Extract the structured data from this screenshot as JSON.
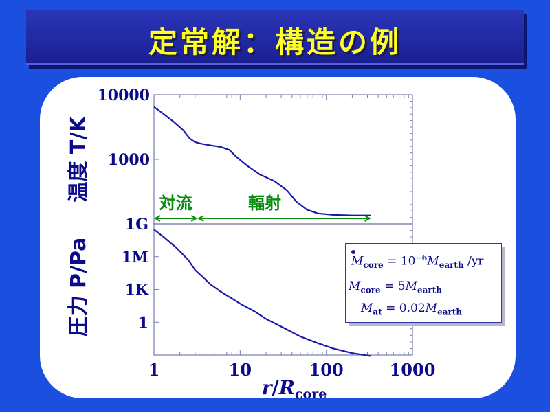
{
  "title": "定常解：構造の例",
  "chart_data": [
    {
      "type": "line",
      "ylabel": "温度 T/K",
      "yscale": "log",
      "ylim": [
        100,
        10000
      ],
      "ytick_labels": [
        "10000",
        "1000"
      ],
      "xscale": "log",
      "xlim": [
        1,
        1000
      ],
      "series": [
        {
          "x": [
            1,
            1.3,
            1.7,
            2.2,
            2.6,
            3.0,
            3.5,
            4.5,
            6,
            7.5,
            9,
            12,
            17,
            25,
            35,
            45,
            60,
            80,
            120,
            200,
            330
          ],
          "y": [
            6500,
            5000,
            3800,
            2800,
            2100,
            1850,
            1750,
            1650,
            1550,
            1400,
            1100,
            800,
            580,
            460,
            330,
            220,
            165,
            145,
            138,
            135,
            135
          ]
        }
      ],
      "annotations": [
        {
          "text": "対流",
          "x_range": [
            1,
            3.2
          ]
        },
        {
          "text": "輻射",
          "x_range": [
            3.2,
            330
          ]
        }
      ]
    },
    {
      "type": "line",
      "ylabel": "圧力 P/Pa",
      "yscale": "log",
      "ylim": [
        0.001,
        1000000000.0
      ],
      "ytick_labels": [
        "1G",
        "1M",
        "1K",
        "1"
      ],
      "xscale": "log",
      "xlim": [
        1,
        1000
      ],
      "xlabel": "r/Rcore",
      "xtick_labels": [
        "1",
        "10",
        "100",
        "1000"
      ],
      "series": [
        {
          "x": [
            1,
            1.3,
            1.8,
            2.5,
            3.0,
            3.5,
            4.5,
            6,
            8,
            10,
            15,
            20,
            30,
            50,
            80,
            120,
            200,
            330
          ],
          "y": [
            300000000.0,
            60000000.0,
            7000000.0,
            500000.0,
            60000.0,
            20000.0,
            3000.0,
            600,
            150,
            50,
            9,
            2,
            0.4,
            0.05,
            0.012,
            0.004,
            0.0015,
            0.0008
          ]
        }
      ],
      "legend": {
        "lines": [
          {
            "main": "M",
            "sub": "core",
            "eq": " = 10",
            "sup": "−6",
            "rhs": "M",
            "rhs_sub": "earth",
            "tail": " /yr"
          },
          {
            "main": "M",
            "sub": "core",
            "eq": " = 5",
            "rhs": "M",
            "rhs_sub": "earth"
          },
          {
            "main": "M",
            "sub": "at",
            "eq": " = 0.02",
            "rhs": "M",
            "rhs_sub": "earth"
          }
        ]
      }
    }
  ],
  "colors": {
    "background": "#1a4fe0",
    "title": "#ffff22",
    "curve": "#1a1aa8",
    "axis_text": "#0a0a8a",
    "annotation": "#0a8a10"
  }
}
